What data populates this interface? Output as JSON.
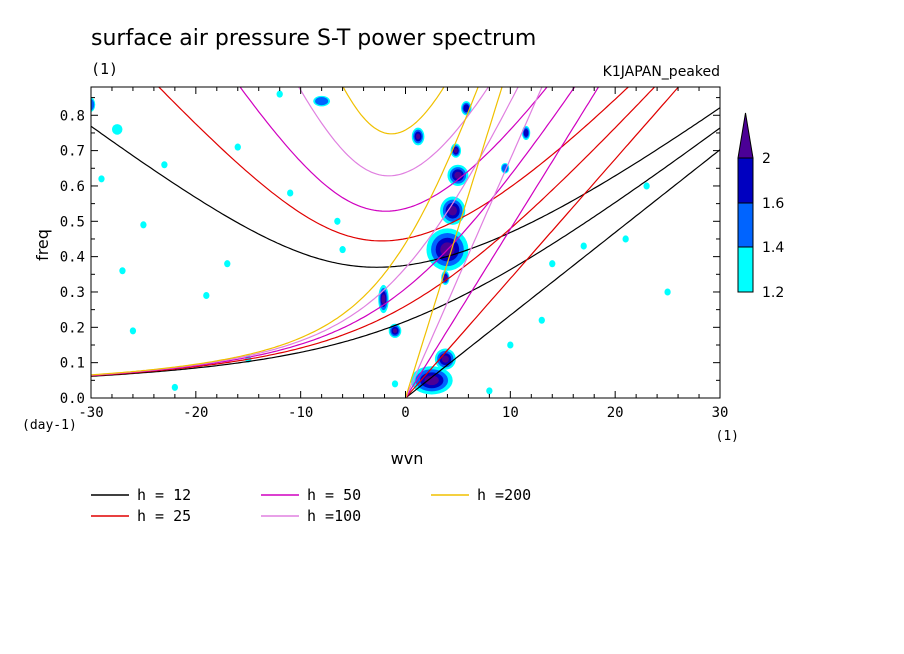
{
  "chart_data": {
    "type": "contour",
    "title": "surface air pressure S-T power spectrum",
    "subtitle_left": "(1)",
    "subtitle_right": "K1JAPAN_peaked",
    "xlabel": "wvn",
    "ylabel": "freq",
    "x_unit": "(1)",
    "y_unit": "(day-1)",
    "xlim": [
      -30,
      30
    ],
    "ylim": [
      0,
      0.88
    ],
    "x_ticks": [
      -30,
      -20,
      -10,
      0,
      10,
      20,
      30
    ],
    "x_tick_labels": [
      "-30",
      "-20",
      "-10",
      "0",
      "10",
      "20",
      "30"
    ],
    "y_ticks": [
      0,
      0.1,
      0.2,
      0.3,
      0.4,
      0.5,
      0.6,
      0.7,
      0.8
    ],
    "y_tick_labels": [
      "0.0",
      "0.1",
      "0.2",
      "0.3",
      "0.4",
      "0.5",
      "0.6",
      "0.7",
      "0.8"
    ],
    "colorbar": {
      "levels": [
        "1.2",
        "1.4",
        "1.6",
        "2"
      ],
      "colors": [
        "#00ffff",
        "#0064ff",
        "#0000c0",
        "#4b0096"
      ]
    },
    "dispersion_curves": [
      {
        "label": "h = 12",
        "h": 12,
        "color": "#000000"
      },
      {
        "label": "h = 25",
        "h": 25,
        "color": "#e00000"
      },
      {
        "label": "h = 50",
        "h": 50,
        "color": "#d000c0"
      },
      {
        "label": "h =100",
        "h": 100,
        "color": "#e080e0"
      },
      {
        "label": "h =200",
        "h": 200,
        "color": "#f0c000"
      }
    ],
    "peaks": [
      {
        "k": 1.2,
        "f": 0.74,
        "r": 0.6,
        "df": 0.025,
        "level": 3
      },
      {
        "k": 4.0,
        "f": 0.42,
        "r": 2.0,
        "df": 0.06,
        "level": 3
      },
      {
        "k": 4.5,
        "f": 0.53,
        "r": 1.2,
        "df": 0.04,
        "level": 3
      },
      {
        "k": 5.0,
        "f": 0.63,
        "r": 1.0,
        "df": 0.03,
        "level": 3
      },
      {
        "k": 4.8,
        "f": 0.7,
        "r": 0.5,
        "df": 0.02,
        "level": 3
      },
      {
        "k": 3.8,
        "f": 0.34,
        "r": 0.4,
        "df": 0.02,
        "level": 3
      },
      {
        "k": -2.1,
        "f": 0.28,
        "r": 0.5,
        "df": 0.04,
        "level": 3
      },
      {
        "k": -1.0,
        "f": 0.19,
        "r": 0.6,
        "df": 0.02,
        "level": 3
      },
      {
        "k": 2.5,
        "f": 0.05,
        "r": 2.0,
        "df": 0.04,
        "level": 3
      },
      {
        "k": 3.8,
        "f": 0.11,
        "r": 1.0,
        "df": 0.03,
        "level": 3
      },
      {
        "k": 5.8,
        "f": 0.82,
        "r": 0.5,
        "df": 0.02,
        "level": 2
      },
      {
        "k": 11.5,
        "f": 0.75,
        "r": 0.4,
        "df": 0.02,
        "level": 2
      },
      {
        "k": 9.5,
        "f": 0.65,
        "r": 0.4,
        "df": 0.015,
        "level": 1
      },
      {
        "k": -30,
        "f": 0.83,
        "r": 0.4,
        "df": 0.02,
        "level": 1
      },
      {
        "k": -27.5,
        "f": 0.76,
        "r": 0.5,
        "df": 0.015,
        "level": 0
      },
      {
        "k": -29,
        "f": 0.62,
        "r": 0.3,
        "df": 0.01,
        "level": 0
      },
      {
        "k": -25,
        "f": 0.49,
        "r": 0.3,
        "df": 0.01,
        "level": 0
      },
      {
        "k": -23,
        "f": 0.66,
        "r": 0.3,
        "df": 0.01,
        "level": 0
      },
      {
        "k": -16,
        "f": 0.71,
        "r": 0.3,
        "df": 0.01,
        "level": 0
      },
      {
        "k": -11,
        "f": 0.58,
        "r": 0.3,
        "df": 0.01,
        "level": 0
      },
      {
        "k": -8,
        "f": 0.84,
        "r": 0.8,
        "df": 0.015,
        "level": 1
      },
      {
        "k": -6.5,
        "f": 0.5,
        "r": 0.3,
        "df": 0.01,
        "level": 0
      },
      {
        "k": -17,
        "f": 0.38,
        "r": 0.3,
        "df": 0.01,
        "level": 0
      },
      {
        "k": -27,
        "f": 0.36,
        "r": 0.3,
        "df": 0.01,
        "level": 0
      },
      {
        "k": -19,
        "f": 0.29,
        "r": 0.3,
        "df": 0.01,
        "level": 0
      },
      {
        "k": -6,
        "f": 0.42,
        "r": 0.3,
        "df": 0.01,
        "level": 0
      },
      {
        "k": -26,
        "f": 0.19,
        "r": 0.3,
        "df": 0.01,
        "level": 0
      },
      {
        "k": -15,
        "f": 0.11,
        "r": 0.3,
        "df": 0.01,
        "level": 0
      },
      {
        "k": -22,
        "f": 0.03,
        "r": 0.3,
        "df": 0.01,
        "level": 0
      },
      {
        "k": -1,
        "f": 0.04,
        "r": 0.3,
        "df": 0.01,
        "level": 0
      },
      {
        "k": 8,
        "f": 0.02,
        "r": 0.3,
        "df": 0.01,
        "level": 0
      },
      {
        "k": 13,
        "f": 0.22,
        "r": 0.3,
        "df": 0.01,
        "level": 0
      },
      {
        "k": 17,
        "f": 0.43,
        "r": 0.3,
        "df": 0.01,
        "level": 0
      },
      {
        "k": 21,
        "f": 0.45,
        "r": 0.3,
        "df": 0.01,
        "level": 0
      },
      {
        "k": 25,
        "f": 0.3,
        "r": 0.3,
        "df": 0.01,
        "level": 0
      },
      {
        "k": 23,
        "f": 0.6,
        "r": 0.3,
        "df": 0.01,
        "level": 0
      },
      {
        "k": 14,
        "f": 0.38,
        "r": 0.3,
        "df": 0.01,
        "level": 0
      },
      {
        "k": 10,
        "f": 0.15,
        "r": 0.3,
        "df": 0.01,
        "level": 0
      },
      {
        "k": -12,
        "f": 0.86,
        "r": 0.3,
        "df": 0.01,
        "level": 0
      }
    ]
  }
}
